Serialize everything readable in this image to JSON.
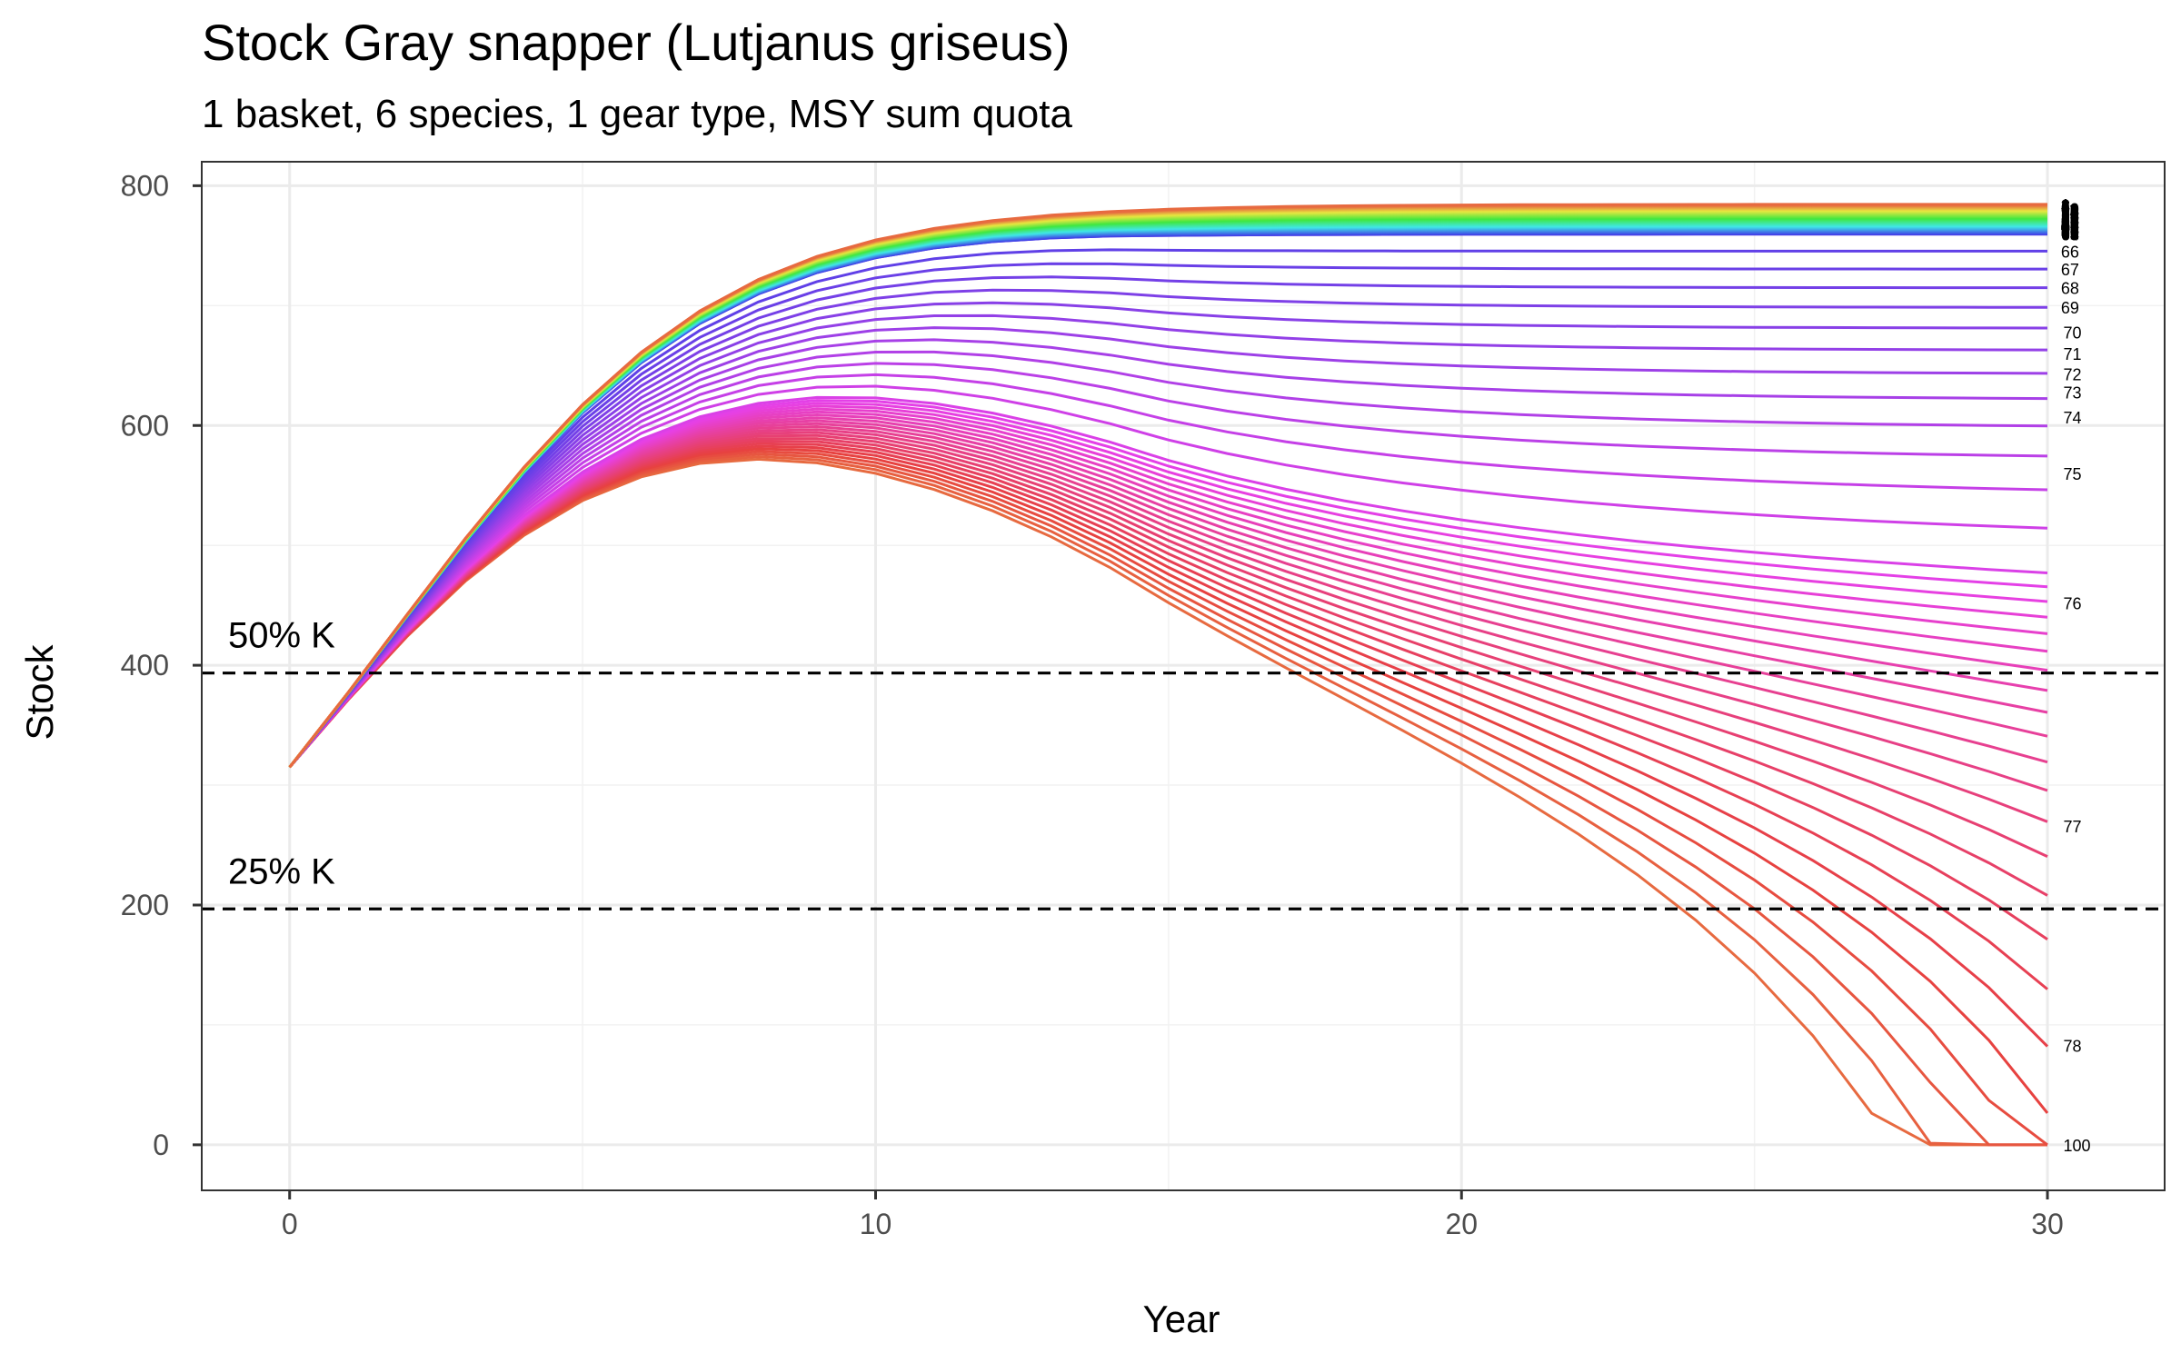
{
  "chart_data": {
    "type": "line",
    "title": "Stock Gray snapper (Lutjanus griseus)",
    "subtitle": "1 basket, 6 species, 1 gear type, MSY sum quota",
    "xlabel": "Year",
    "ylabel": "Stock",
    "xlim": [
      -1.5,
      32
    ],
    "ylim": [
      -38,
      820
    ],
    "x_ticks": [
      0,
      10,
      20,
      30
    ],
    "y_ticks": [
      0,
      200,
      400,
      600,
      800
    ],
    "x_tick_labels": [
      "0",
      "10",
      "20",
      "30"
    ],
    "y_tick_labels": [
      "0",
      "200",
      "400",
      "600",
      "800"
    ],
    "grid": true,
    "legend": "none",
    "initial_stock": 315,
    "carrying_capacity_K": 787,
    "series_count": 100,
    "collapse_threshold_scenario": 78,
    "reference_lines": [
      {
        "label": "50% K",
        "y": 393.5
      },
      {
        "label": "25% K",
        "y": 196.75
      }
    ],
    "series_end_labels": [
      {
        "label": "74",
        "y": 607
      },
      {
        "label": "75",
        "y": 560
      },
      {
        "label": "76",
        "y": 452
      },
      {
        "label": "77",
        "y": 266
      },
      {
        "label": "78",
        "y": 83
      }
    ],
    "series_end_labels_clustered": [
      "70",
      "71",
      "72",
      "73"
    ],
    "collapsed_end_label": "100"
  }
}
